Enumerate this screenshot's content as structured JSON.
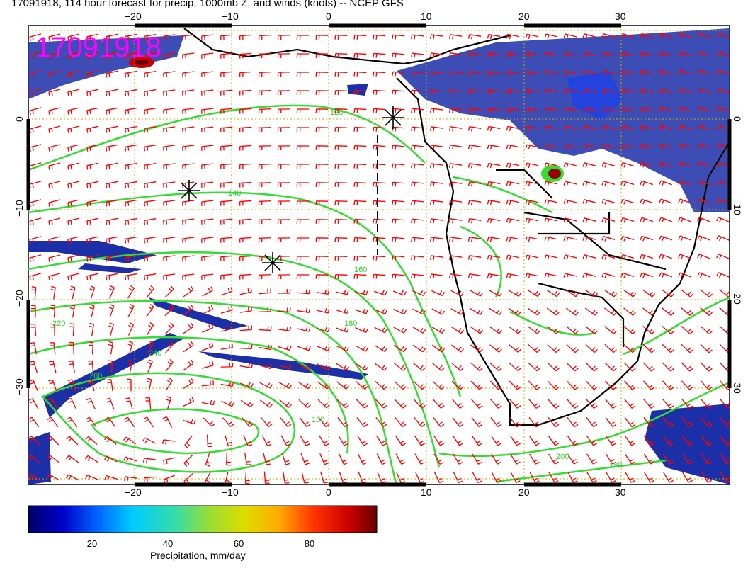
{
  "title": "17091918, 114 hour forecast for precip, 1000mb Z, and winds (knots) -- NCEP GFS",
  "map_stamp": "17091918",
  "axes": {
    "lon_ticks": [
      "−20",
      "−10",
      "0",
      "10",
      "20",
      "30"
    ],
    "lat_ticks": [
      "0",
      "−10",
      "−20",
      "−30"
    ]
  },
  "contour_labels": [
    "120",
    "140",
    "160",
    "180",
    "220",
    "240",
    "260",
    "200",
    "160",
    "180"
  ],
  "colorbar": {
    "label": "Precipitation, mm/day",
    "ticks": [
      "20",
      "40",
      "60",
      "80"
    ],
    "range": [
      0,
      100
    ],
    "colors": [
      "#000066",
      "#0000cc",
      "#0066ff",
      "#00ccff",
      "#33ddaa",
      "#99dd33",
      "#dddd00",
      "#ffaa00",
      "#ff3300",
      "#cc0000",
      "#660000"
    ]
  },
  "colors": {
    "contour": "#33dd33",
    "wind_barb": "#ff0000",
    "grid": "#ccaa00",
    "coast": "#000000",
    "stamp": "#ff00ff"
  },
  "icons": [
    "asterisk-marker",
    "wind-barb-icon"
  ]
}
